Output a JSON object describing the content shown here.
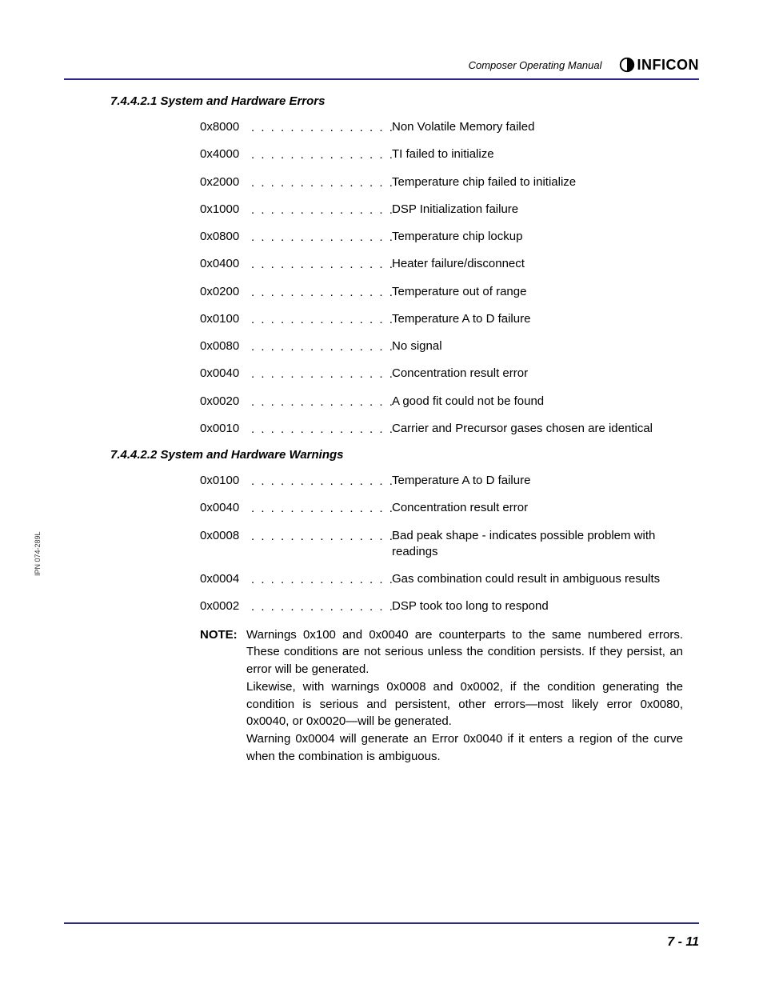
{
  "header": {
    "title": "Composer Operating Manual",
    "brand": "INFICON"
  },
  "sections": [
    {
      "number": "7.4.4.2.1",
      "title": "System and Hardware Errors",
      "entries": [
        {
          "code": "0x8000",
          "desc": "Non Volatile Memory failed"
        },
        {
          "code": "0x4000",
          "desc": "TI failed to initialize"
        },
        {
          "code": "0x2000",
          "desc": "Temperature chip failed to initialize"
        },
        {
          "code": "0x1000",
          "desc": "DSP Initialization failure"
        },
        {
          "code": "0x0800",
          "desc": "Temperature chip lockup"
        },
        {
          "code": "0x0400",
          "desc": "Heater failure/disconnect"
        },
        {
          "code": "0x0200",
          "desc": "Temperature out of range"
        },
        {
          "code": "0x0100",
          "desc": "Temperature A to D failure"
        },
        {
          "code": "0x0080",
          "desc": "No signal"
        },
        {
          "code": "0x0040",
          "desc": "Concentration result error"
        },
        {
          "code": "0x0020",
          "desc": "A good fit could not be found"
        },
        {
          "code": "0x0010",
          "desc": "Carrier and Precursor gases chosen are identical"
        }
      ]
    },
    {
      "number": "7.4.4.2.2",
      "title": "System and Hardware Warnings",
      "entries": [
        {
          "code": "0x0100",
          "desc": "Temperature A to D failure"
        },
        {
          "code": "0x0040",
          "desc": "Concentration result error"
        },
        {
          "code": "0x0008",
          "desc": "Bad peak shape - indicates possible problem with readings"
        },
        {
          "code": "0x0004",
          "desc": "Gas combination could result in ambiguous results"
        },
        {
          "code": "0x0002",
          "desc": "DSP took too long to respond"
        }
      ]
    }
  ],
  "note": {
    "label": "NOTE:",
    "lines": [
      "Warnings 0x100 and 0x0040 are counterparts to the same numbered errors. These conditions are not serious unless the condition persists. If they persist, an error will be generated.",
      "Likewise, with warnings 0x0008 and 0x0002, if the condition generating the condition is serious and persistent, other errors—most likely error 0x0080, 0x0040, or 0x0020—will be generated.",
      "Warning 0x0004 will generate an Error 0x0040 if it enters a region of the curve when the combination is ambiguous."
    ]
  },
  "footer": {
    "page": "7 - 11",
    "ipn": "IPN 074-289L"
  },
  "style": {
    "rule_color": "#2a2a8a",
    "dots": ". . . . . . . . . . . . . . . . . . . . . . . . . . . . . ."
  }
}
